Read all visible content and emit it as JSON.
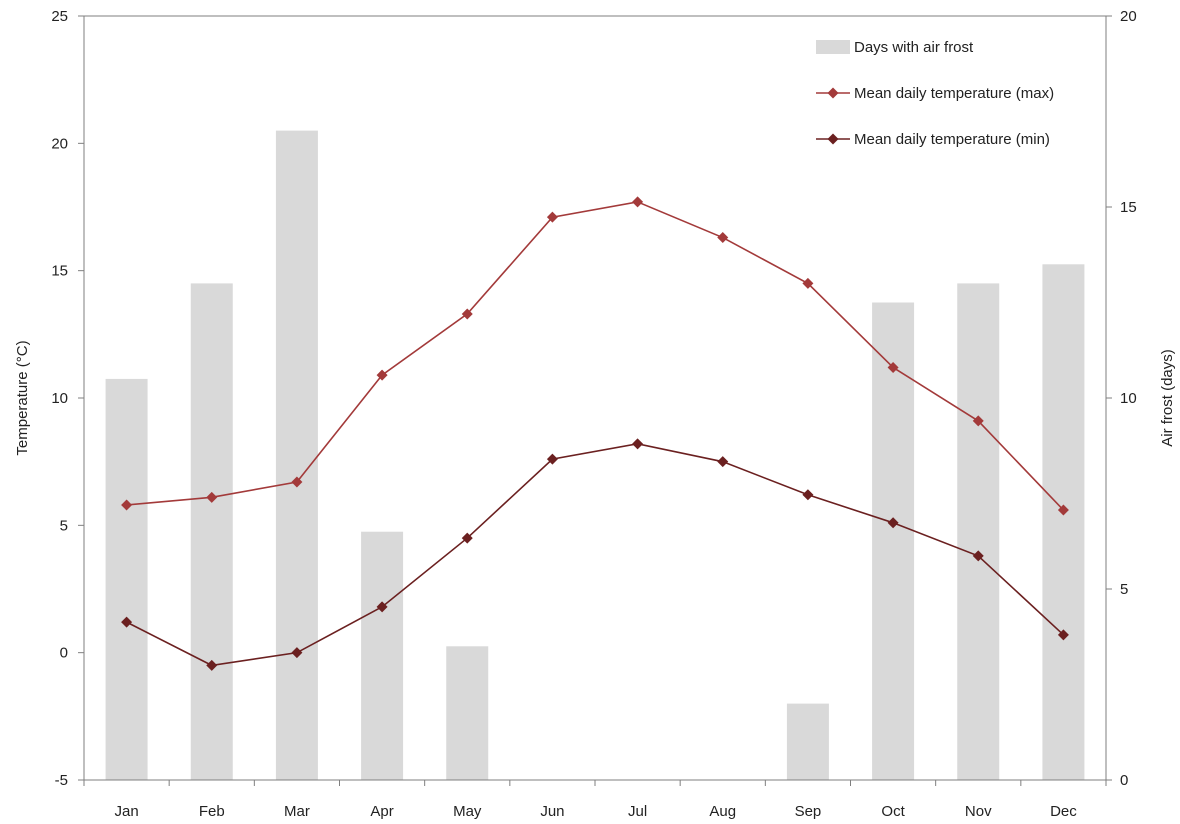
{
  "chart_data": {
    "type": "bar",
    "categories": [
      "Jan",
      "Feb",
      "Mar",
      "Apr",
      "May",
      "Jun",
      "Jul",
      "Aug",
      "Sep",
      "Oct",
      "Nov",
      "Dec"
    ],
    "title": "",
    "ylabel": "Temperature (°C)",
    "y2label": "Air frost (days)",
    "ylim": [
      -5,
      25
    ],
    "y2lim": [
      0,
      20
    ],
    "yticks": [
      "-5",
      "0",
      "5",
      "10",
      "15",
      "20",
      "25"
    ],
    "y2ticks": [
      "0",
      "5",
      "10",
      "15",
      "20"
    ],
    "grid": false,
    "legend_position": "top-right",
    "series": [
      {
        "name": "Days with air frost",
        "type": "bar",
        "axis": "right",
        "color": "#d9d9d9",
        "values": [
          10.5,
          13.0,
          17.0,
          6.5,
          3.5,
          0,
          0,
          0,
          2.0,
          12.5,
          13.0,
          13.5
        ]
      },
      {
        "name": "Mean daily temperature (max)",
        "type": "line",
        "axis": "left",
        "color": "#a33a3a",
        "values": [
          5.8,
          6.1,
          6.7,
          10.9,
          13.3,
          17.1,
          17.7,
          16.3,
          14.5,
          11.2,
          9.1,
          5.6
        ]
      },
      {
        "name": "Mean daily temperature (min)",
        "type": "line",
        "axis": "left",
        "color": "#6b2020",
        "values": [
          1.2,
          -0.5,
          0.0,
          1.8,
          4.5,
          7.6,
          8.2,
          7.5,
          6.2,
          5.1,
          3.8,
          0.7
        ]
      }
    ]
  }
}
